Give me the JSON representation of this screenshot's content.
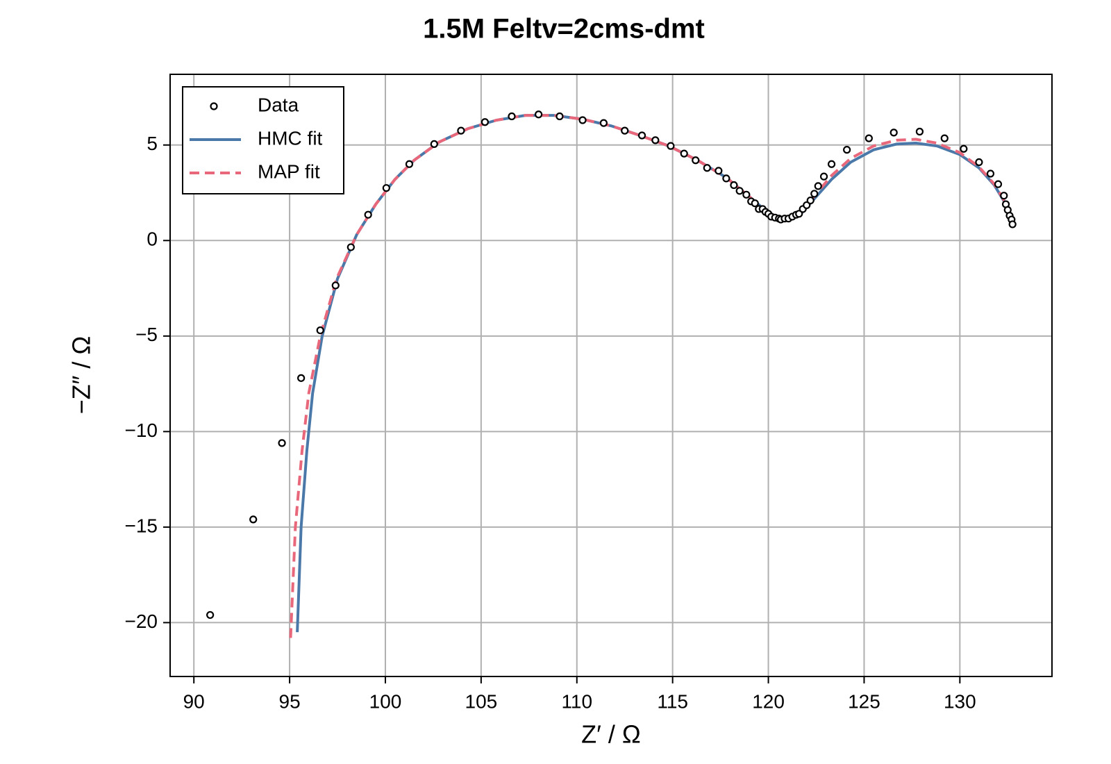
{
  "chart_data": {
    "type": "scatter",
    "title": "1.5M Feltv=2cms-dmt",
    "x_label": "Z′ / Ω",
    "y_label": "−Z″ / Ω",
    "xlim": [
      88.76,
      134.81
    ],
    "ylim": [
      -22.82,
      8.7
    ],
    "xticks": [
      90,
      95,
      100,
      105,
      110,
      115,
      120,
      125,
      130
    ],
    "yticks": [
      {
        "value": -20,
        "label": "−20"
      },
      {
        "value": -15,
        "label": "−15"
      },
      {
        "value": -10,
        "label": "−10"
      },
      {
        "value": -5,
        "label": "−5"
      },
      0,
      5
    ],
    "grid": true,
    "legend": "upper left",
    "series": [
      {
        "name": "Data",
        "type": "scatter",
        "color": "#000000",
        "x": [
          90.85,
          93.1,
          94.6,
          95.6,
          96.6,
          97.4,
          98.2,
          99.1,
          100.05,
          101.25,
          102.55,
          103.95,
          105.2,
          106.6,
          108.0,
          109.1,
          110.3,
          111.4,
          112.5,
          113.4,
          114.1,
          114.9,
          115.6,
          116.2,
          116.8,
          117.4,
          117.8,
          118.2,
          118.5,
          118.85,
          119.1,
          119.3,
          119.5,
          119.7,
          119.85,
          120.0,
          120.15,
          120.35,
          120.55,
          120.65,
          120.85,
          121.05,
          121.25,
          121.45,
          121.6,
          121.8,
          122.0,
          122.2,
          122.4,
          122.6,
          122.9,
          123.3,
          124.1,
          125.25,
          126.55,
          127.9,
          129.2,
          130.2,
          131.0,
          131.6,
          132.0,
          132.3,
          132.4,
          132.5,
          132.6,
          132.7,
          132.75
        ],
        "y": [
          -19.6,
          -14.6,
          -10.6,
          -7.2,
          -4.7,
          -2.35,
          -0.35,
          1.35,
          2.75,
          4.0,
          5.05,
          5.75,
          6.2,
          6.5,
          6.6,
          6.5,
          6.3,
          6.15,
          5.75,
          5.5,
          5.25,
          4.95,
          4.55,
          4.2,
          3.8,
          3.65,
          3.25,
          2.9,
          2.6,
          2.4,
          2.05,
          1.95,
          1.65,
          1.65,
          1.5,
          1.4,
          1.25,
          1.2,
          1.15,
          1.1,
          1.15,
          1.15,
          1.25,
          1.35,
          1.4,
          1.65,
          1.85,
          2.1,
          2.45,
          2.85,
          3.35,
          4.0,
          4.75,
          5.35,
          5.65,
          5.7,
          5.35,
          4.8,
          4.1,
          3.5,
          2.95,
          2.35,
          1.9,
          1.6,
          1.3,
          1.1,
          0.85
        ]
      },
      {
        "name": "HMC fit",
        "type": "line",
        "color": "#4a78a8",
        "linestyle": "solid",
        "x": [
          95.4,
          95.6,
          95.9,
          96.2,
          96.7,
          97.5,
          98.5,
          99.5,
          100.5,
          101.5,
          102.8,
          104.3,
          105.8,
          107.3,
          108.8,
          110.3,
          111.8,
          113.3,
          114.8,
          116.3,
          117.8,
          119.0,
          120.0,
          120.7,
          121.3,
          121.8,
          122.5,
          123.3,
          124.3,
          125.5,
          126.7,
          127.7,
          128.8,
          130.0,
          131.0,
          131.8,
          132.4,
          132.8
        ],
        "y": [
          -20.5,
          -15,
          -11,
          -8,
          -5,
          -2,
          0.3,
          1.9,
          3.2,
          4.2,
          5.15,
          5.85,
          6.3,
          6.55,
          6.55,
          6.35,
          6.0,
          5.5,
          4.95,
          4.2,
          3.3,
          2.3,
          1.45,
          1.15,
          1.2,
          1.5,
          2.3,
          3.2,
          4.1,
          4.75,
          5.05,
          5.1,
          4.95,
          4.5,
          3.8,
          2.9,
          1.9,
          0.85
        ]
      },
      {
        "name": "MAP fit",
        "type": "line",
        "color": "#e8677a",
        "linestyle": "dashed",
        "x": [
          95.05,
          95.3,
          95.65,
          96.0,
          96.6,
          97.45,
          98.5,
          99.5,
          100.5,
          101.5,
          102.8,
          104.3,
          105.8,
          107.3,
          108.8,
          110.3,
          111.8,
          113.3,
          114.8,
          116.3,
          117.8,
          119.0,
          120.0,
          120.7,
          121.3,
          121.8,
          122.5,
          123.3,
          124.3,
          125.5,
          126.7,
          127.7,
          128.8,
          130.0,
          131.0,
          131.8,
          132.4,
          132.8
        ],
        "y": [
          -20.8,
          -15,
          -11,
          -8,
          -5,
          -2,
          0.3,
          1.9,
          3.2,
          4.2,
          5.15,
          5.85,
          6.3,
          6.55,
          6.55,
          6.35,
          6.0,
          5.5,
          4.95,
          4.2,
          3.3,
          2.3,
          1.45,
          1.15,
          1.25,
          1.6,
          2.45,
          3.4,
          4.3,
          4.95,
          5.25,
          5.3,
          5.1,
          4.6,
          3.85,
          2.95,
          1.95,
          0.85
        ]
      }
    ]
  }
}
